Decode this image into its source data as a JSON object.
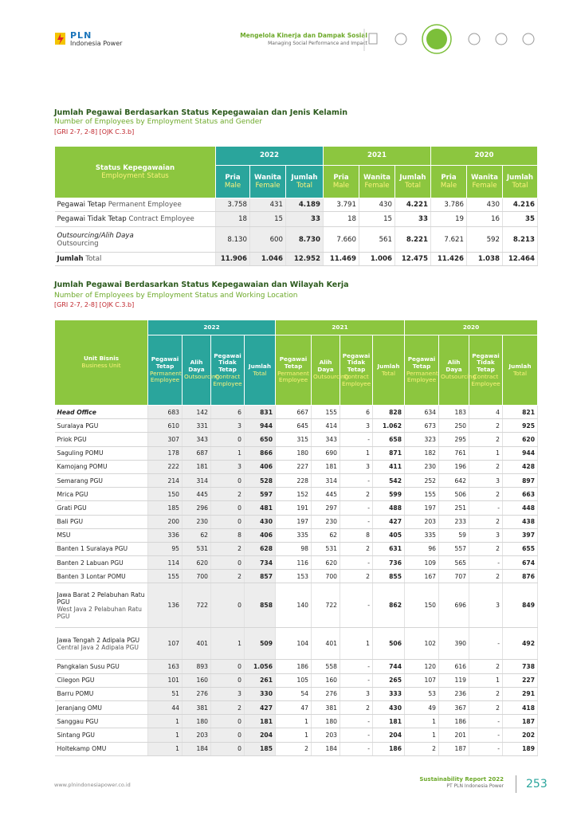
{
  "header": {
    "logo_brand": "PLN",
    "logo_sub": "Indonesia Power",
    "section_id": "Mengelola Kinerja dan Dampak Sosial",
    "section_en": "Managing Social Performance and Impact"
  },
  "table1": {
    "title_id": "Jumlah Pegawai Berdasarkan Status Kepegawaian dan Jenis Kelamin",
    "title_en": "Number of Employees by Employment Status and Gender",
    "ref": "[GRI 2-7, 2-8] [OJK C.3.b]",
    "stub": {
      "id": "Status Kepegawaian",
      "en": "Employment Status"
    },
    "years": [
      "2022",
      "2021",
      "2020"
    ],
    "columns": [
      {
        "id": "Pria",
        "en": "Male"
      },
      {
        "id": "Wanita",
        "en": "Female"
      },
      {
        "id": "Jumlah",
        "en": "Total"
      }
    ],
    "rows": [
      {
        "label_id": "Pegawai Tetap",
        "label_en": "Permanent Employee",
        "values": [
          "3.758",
          "431",
          "4.189",
          "3.791",
          "430",
          "4.221",
          "3.786",
          "430",
          "4.216"
        ]
      },
      {
        "label_id": "Pegawai Tidak Tetap",
        "label_en": "Contract Employee",
        "values": [
          "18",
          "15",
          "33",
          "18",
          "15",
          "33",
          "19",
          "16",
          "35"
        ]
      },
      {
        "label_id": "Outsourcing/Alih Daya",
        "label_en": "Outsourcing",
        "values": [
          "8.130",
          "600",
          "8.730",
          "7.660",
          "561",
          "8.221",
          "7.621",
          "592",
          "8.213"
        ]
      },
      {
        "label_id": "Jumlah",
        "label_en": "Total",
        "values": [
          "11.906",
          "1.046",
          "12.952",
          "11.469",
          "1.006",
          "12.475",
          "11.426",
          "1.038",
          "12.464"
        ]
      }
    ]
  },
  "table2": {
    "title_id": "Jumlah Pegawai Berdasarkan Status Kepegawaian dan Wilayah Kerja",
    "title_en": "Number of Employees by Employment Status and Working Location",
    "ref": "[GRI 2-7, 2-8] [OJK C.3.b]",
    "stub": {
      "id": "Unit Bisnis",
      "en": "Business Unit"
    },
    "years": [
      "2022",
      "2021",
      "2020"
    ],
    "columns": [
      {
        "id": "Pegawai Tetap",
        "en": "Permanent Employee"
      },
      {
        "id": "Alih Daya",
        "en": "Outsourcing"
      },
      {
        "id": "Pegawai Tidak Tetap",
        "en": "Contract Employee"
      },
      {
        "id": "Jumlah",
        "en": "Total"
      }
    ],
    "rows": [
      {
        "label_id": "Head Office",
        "values": [
          "683",
          "142",
          "6",
          "831",
          "667",
          "155",
          "6",
          "828",
          "634",
          "183",
          "4",
          "821"
        ]
      },
      {
        "label_id": "Suralaya PGU",
        "values": [
          "610",
          "331",
          "3",
          "944",
          "645",
          "414",
          "3",
          "1.062",
          "673",
          "250",
          "2",
          "925"
        ]
      },
      {
        "label_id": "Priok PGU",
        "values": [
          "307",
          "343",
          "0",
          "650",
          "315",
          "343",
          "-",
          "658",
          "323",
          "295",
          "2",
          "620"
        ]
      },
      {
        "label_id": "Saguling POMU",
        "values": [
          "178",
          "687",
          "1",
          "866",
          "180",
          "690",
          "1",
          "871",
          "182",
          "761",
          "1",
          "944"
        ]
      },
      {
        "label_id": "Kamojang POMU",
        "values": [
          "222",
          "181",
          "3",
          "406",
          "227",
          "181",
          "3",
          "411",
          "230",
          "196",
          "2",
          "428"
        ]
      },
      {
        "label_id": "Semarang PGU",
        "values": [
          "214",
          "314",
          "0",
          "528",
          "228",
          "314",
          "-",
          "542",
          "252",
          "642",
          "3",
          "897"
        ]
      },
      {
        "label_id": "Mrica PGU",
        "values": [
          "150",
          "445",
          "2",
          "597",
          "152",
          "445",
          "2",
          "599",
          "155",
          "506",
          "2",
          "663"
        ]
      },
      {
        "label_id": "Grati PGU",
        "values": [
          "185",
          "296",
          "0",
          "481",
          "191",
          "297",
          "-",
          "488",
          "197",
          "251",
          "-",
          "448"
        ]
      },
      {
        "label_id": "Bali PGU",
        "values": [
          "200",
          "230",
          "0",
          "430",
          "197",
          "230",
          "-",
          "427",
          "203",
          "233",
          "2",
          "438"
        ]
      },
      {
        "label_id": "MSU",
        "values": [
          "336",
          "62",
          "8",
          "406",
          "335",
          "62",
          "8",
          "405",
          "335",
          "59",
          "3",
          "397"
        ]
      },
      {
        "label_id": "Banten 1 Suralaya PGU",
        "values": [
          "95",
          "531",
          "2",
          "628",
          "98",
          "531",
          "2",
          "631",
          "96",
          "557",
          "2",
          "655"
        ]
      },
      {
        "label_id": "Banten 2 Labuan PGU",
        "values": [
          "114",
          "620",
          "0",
          "734",
          "116",
          "620",
          "-",
          "736",
          "109",
          "565",
          "-",
          "674"
        ]
      },
      {
        "label_id": "Banten 3 Lontar POMU",
        "values": [
          "155",
          "700",
          "2",
          "857",
          "153",
          "700",
          "2",
          "855",
          "167",
          "707",
          "2",
          "876"
        ]
      },
      {
        "label_id": "Jawa Barat 2 Pelabuhan Ratu PGU",
        "label_en": "West Java 2 Pelabuhan Ratu PGU",
        "values": [
          "136",
          "722",
          "0",
          "858",
          "140",
          "722",
          "-",
          "862",
          "150",
          "696",
          "3",
          "849"
        ]
      },
      {
        "label_id": "Jawa Tengah 2 Adipala PGU",
        "label_en": "Central Java 2 Adipala PGU",
        "values": [
          "107",
          "401",
          "1",
          "509",
          "104",
          "401",
          "1",
          "506",
          "102",
          "390",
          "-",
          "492"
        ]
      },
      {
        "label_id": "Pangkalan Susu PGU",
        "values": [
          "163",
          "893",
          "0",
          "1.056",
          "186",
          "558",
          "-",
          "744",
          "120",
          "616",
          "2",
          "738"
        ]
      },
      {
        "label_id": "Cilegon PGU",
        "values": [
          "101",
          "160",
          "0",
          "261",
          "105",
          "160",
          "-",
          "265",
          "107",
          "119",
          "1",
          "227"
        ]
      },
      {
        "label_id": "Barru POMU",
        "values": [
          "51",
          "276",
          "3",
          "330",
          "54",
          "276",
          "3",
          "333",
          "53",
          "236",
          "2",
          "291"
        ]
      },
      {
        "label_id": "Jeranjang OMU",
        "values": [
          "44",
          "381",
          "2",
          "427",
          "47",
          "381",
          "2",
          "430",
          "49",
          "367",
          "2",
          "418"
        ]
      },
      {
        "label_id": "Sanggau PGU",
        "values": [
          "1",
          "180",
          "0",
          "181",
          "1",
          "180",
          "-",
          "181",
          "1",
          "186",
          "-",
          "187"
        ]
      },
      {
        "label_id": "Sintang PGU",
        "values": [
          "1",
          "203",
          "0",
          "204",
          "1",
          "203",
          "-",
          "204",
          "1",
          "201",
          "-",
          "202"
        ]
      },
      {
        "label_id": "Holtekamp OMU",
        "values": [
          "1",
          "184",
          "0",
          "185",
          "2",
          "184",
          "-",
          "186",
          "2",
          "187",
          "-",
          "189"
        ]
      }
    ]
  },
  "footer": {
    "url": "www.plnindonesiapower.co.id",
    "report": "Sustainability Report 2022",
    "company": "PT PLN Indonesia Power",
    "page": "253"
  }
}
